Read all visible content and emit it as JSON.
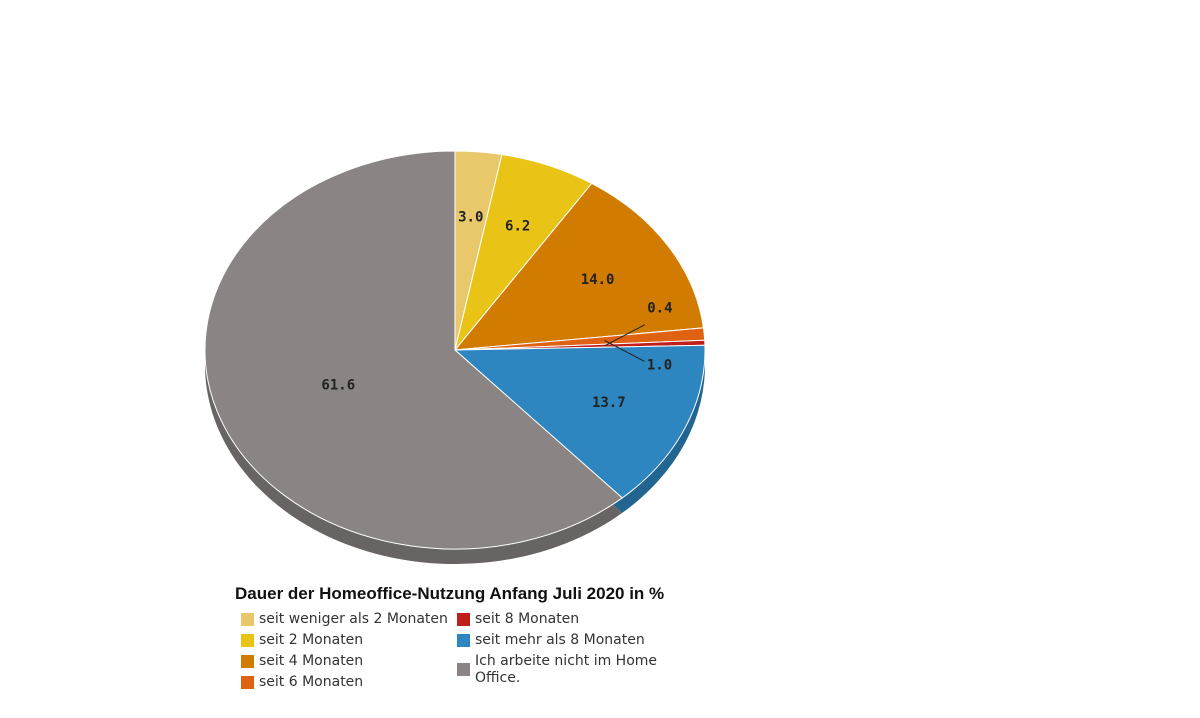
{
  "chart_data": {
    "type": "pie",
    "title": "Dauer der Homeoffice-Nutzung Anfang Juli 2020 in %",
    "categories": [
      "seit weniger als 2 Monaten",
      "seit 2 Monaten",
      "seit 4 Monaten",
      "seit 6 Monaten",
      "seit 8 Monaten",
      "seit mehr als 8 Monaten",
      "Ich arbeite nicht im Home Office."
    ],
    "values": [
      3.0,
      6.2,
      14.0,
      1.0,
      0.4,
      13.7,
      61.6
    ],
    "value_labels": [
      "3.0",
      "6.2",
      "14.0",
      "1.0",
      "0.4",
      "13.7",
      "61.6"
    ],
    "colors": [
      "#e8c86a",
      "#e9c416",
      "#d17c00",
      "#df6212",
      "#c01f1a",
      "#2e86c1",
      "#8a8584"
    ]
  }
}
